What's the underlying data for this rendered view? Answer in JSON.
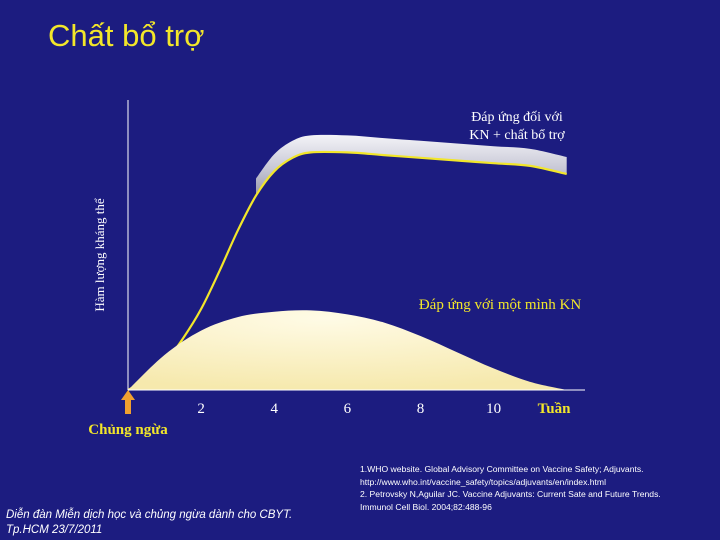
{
  "slide": {
    "title": "Chất bổ trợ",
    "footer_line1": "Diễn đàn Miễn dịch học và chủng ngừa dành cho CBYT.",
    "footer_line2": "Tp.HCM 23/7/2011",
    "references": [
      "1.WHO website. Global Advisory Committee on Vaccine Safety; Adjuvants.",
      "http://www.who.int/vaccine_safety/topics/adjuvants/en/index.html",
      "2. Petrovsky N,Aguilar JC. Vaccine Adjuvants: Current Sate and Future Trends.",
      "Immunol Cell Biol. 2004;82:488-96"
    ]
  },
  "chart_data": {
    "type": "area",
    "title": "",
    "xlabel": "Tuần",
    "ylabel": "Hàm lượng kháng thể",
    "x_ticks": [
      2,
      4,
      6,
      8,
      10
    ],
    "xlim": [
      0,
      12.5
    ],
    "ylim": [
      0,
      100
    ],
    "y_ticks_shown": false,
    "grid": false,
    "vaccination_marker_label": "Chủng ngừa",
    "vaccination_marker_x": 0,
    "series": [
      {
        "name": "Đáp ứng đối với KN + chất bổ trợ",
        "x": [
          0,
          0.5,
          1,
          1.5,
          2,
          2.5,
          3,
          3.5,
          4,
          4.5,
          5,
          6,
          7,
          8,
          9,
          10,
          11,
          12
        ],
        "y": [
          0,
          4,
          10,
          19,
          30,
          44,
          59,
          72,
          81,
          86,
          88,
          88,
          87,
          86,
          85,
          84,
          83,
          80
        ],
        "fill_color": "#c8c8d6",
        "line_color": "#f2e62a"
      },
      {
        "name": "Đáp ứng với một mình KN",
        "x": [
          0,
          1,
          2,
          3,
          4,
          5,
          6,
          7,
          8,
          9,
          10,
          11,
          12
        ],
        "y": [
          0,
          13,
          22,
          27,
          29,
          29.5,
          28,
          25,
          20,
          14,
          8,
          3,
          0
        ],
        "fill_color": "#fff5cc",
        "line_color": "#fff5cc"
      }
    ]
  }
}
